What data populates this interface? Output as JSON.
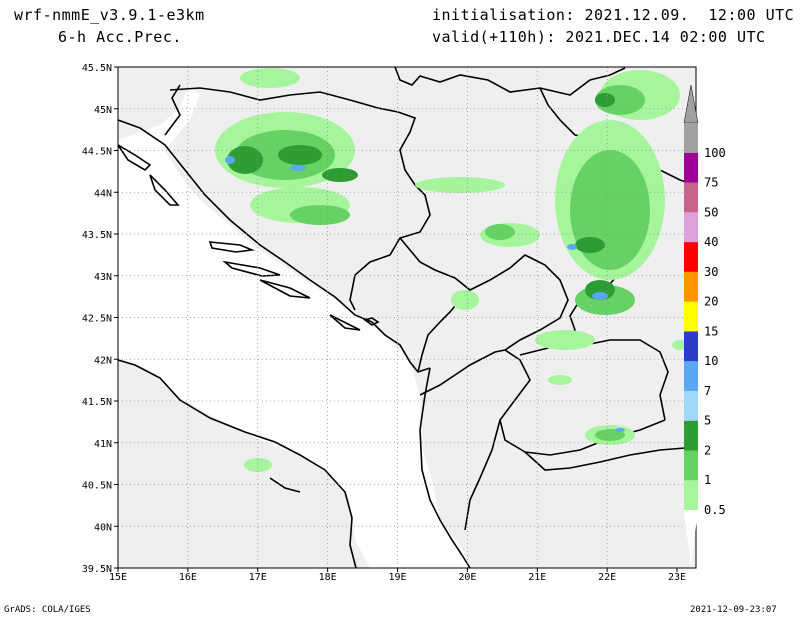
{
  "header": {
    "model": "wrf-nmmE_v3.9.1-e3km",
    "field": "6-h Acc.Prec.",
    "init": "initialisation: 2021.12.09.  12:00 UTC",
    "valid": "valid(+110h): 2021.DEC.14 02:00 UTC"
  },
  "footer": {
    "left": "GrADS: COLA/IGES",
    "right": "2021-12-09-23:07"
  },
  "map": {
    "lon_labels": [
      "15E",
      "16E",
      "17E",
      "18E",
      "19E",
      "20E",
      "21E",
      "22E",
      "23E"
    ],
    "lat_labels": [
      "45.5N",
      "45N",
      "44.5N",
      "44N",
      "43.5N",
      "43N",
      "42.5N",
      "42N",
      "41.5N",
      "41N",
      "40.5N",
      "40N",
      "39.5N"
    ],
    "land_color": "#efefef",
    "grid": true
  },
  "colorbar": {
    "labels": [
      "0.5",
      "1",
      "2",
      "5",
      "7",
      "10",
      "15",
      "20",
      "30",
      "40",
      "50",
      "75",
      "100"
    ],
    "colors": [
      "#a6f59c",
      "#66d264",
      "#2d9c34",
      "#a0d9f8",
      "#5aa6f0",
      "#2a3cc8",
      "#ffff00",
      "#ff9600",
      "#ff0000",
      "#dca0dc",
      "#c8648c",
      "#a00096",
      "#a0a0a0"
    ]
  }
}
